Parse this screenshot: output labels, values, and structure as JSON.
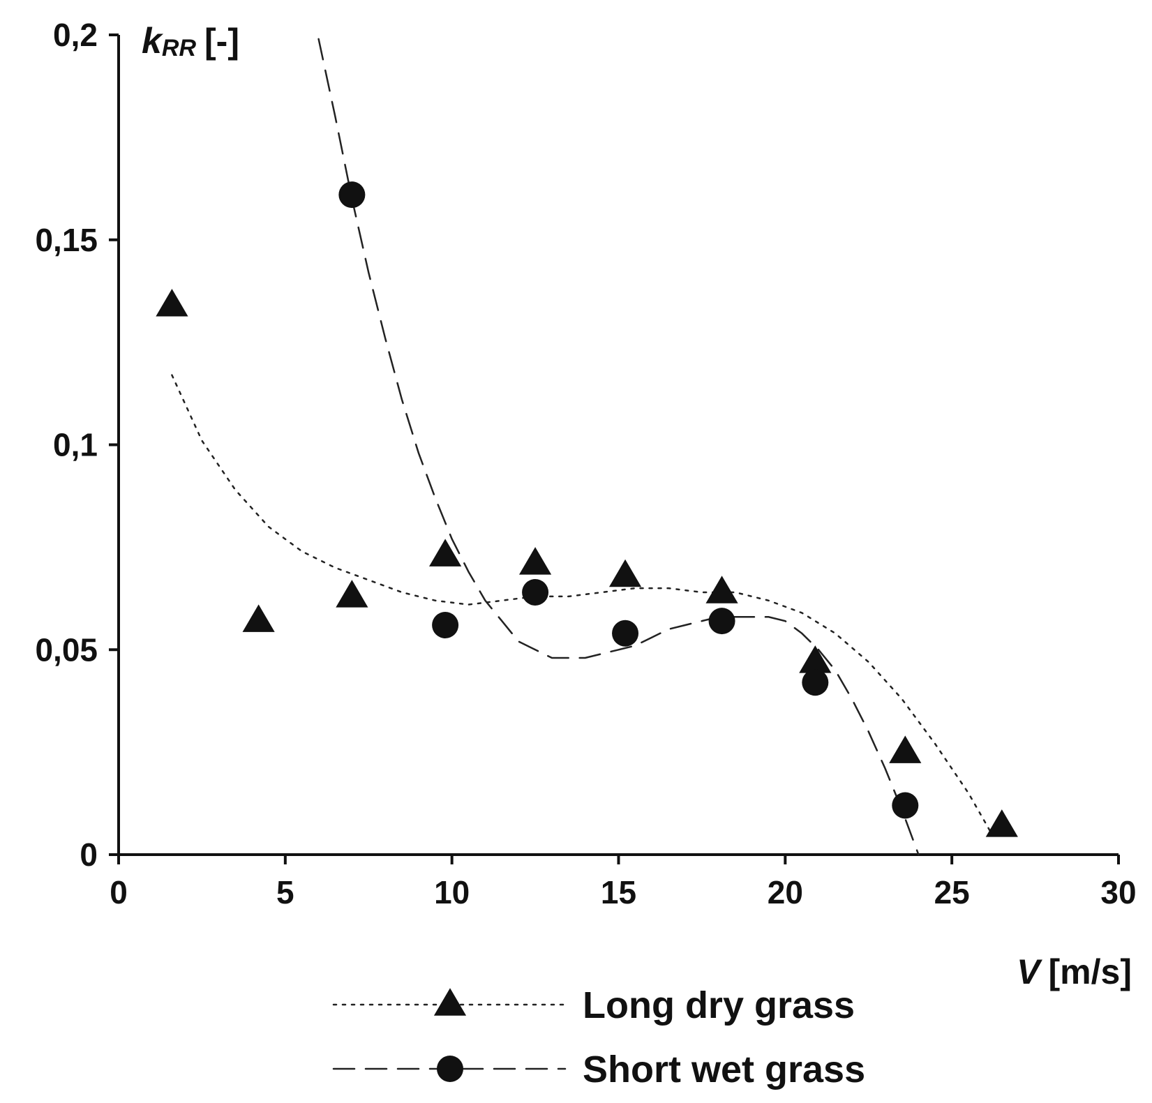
{
  "chart_data": {
    "type": "scatter",
    "title": "",
    "xlabel": {
      "symbol": "V",
      "unit": "[m/s]"
    },
    "ylabel": {
      "symbol": "k",
      "subscript": "RR",
      "unit": "[-]"
    },
    "xlim": [
      0,
      30
    ],
    "ylim": [
      0,
      0.2
    ],
    "x_ticks": [
      0,
      5,
      10,
      15,
      20,
      25,
      30
    ],
    "x_tick_labels": [
      "0",
      "5",
      "10",
      "15",
      "20",
      "25",
      "30"
    ],
    "y_ticks": [
      0,
      0.05,
      0.1,
      0.15,
      0.2
    ],
    "y_tick_labels": [
      "0",
      "0,05",
      "0,1",
      "0,15",
      "0,2"
    ],
    "grid": false,
    "legend_position": "bottom",
    "series": [
      {
        "name": "Long dry grass",
        "marker": "triangle",
        "line_style": "dotted",
        "x": [
          1.6,
          4.2,
          7.0,
          9.8,
          12.5,
          15.2,
          18.1,
          20.9,
          23.6,
          26.5
        ],
        "y": [
          0.134,
          0.057,
          0.063,
          0.073,
          0.071,
          0.068,
          0.064,
          0.047,
          0.025,
          0.007
        ],
        "trend_x": [
          1.6,
          2.5,
          3.5,
          4.5,
          5.5,
          6.5,
          7.5,
          8.5,
          9.5,
          10.5,
          11.5,
          12.5,
          13.5,
          14.5,
          15.5,
          16.5,
          17.5,
          18.5,
          19.5,
          20.5,
          21.5,
          22.5,
          23.5,
          24.5,
          25.5,
          26.2
        ],
        "trend_y": [
          0.117,
          0.101,
          0.089,
          0.08,
          0.074,
          0.07,
          0.067,
          0.064,
          0.062,
          0.061,
          0.062,
          0.063,
          0.063,
          0.064,
          0.065,
          0.065,
          0.064,
          0.064,
          0.062,
          0.059,
          0.054,
          0.047,
          0.038,
          0.027,
          0.015,
          0.005
        ]
      },
      {
        "name": "Short wet grass",
        "marker": "circle",
        "line_style": "dashed",
        "x": [
          7.0,
          9.8,
          12.5,
          15.2,
          18.1,
          20.9,
          23.6
        ],
        "y": [
          0.161,
          0.056,
          0.064,
          0.054,
          0.057,
          0.042,
          0.012
        ],
        "trend_x": [
          6.0,
          6.5,
          7.0,
          7.5,
          8.0,
          8.5,
          9.0,
          9.5,
          10.0,
          10.5,
          11.0,
          11.5,
          12.0,
          12.5,
          13.0,
          13.5,
          14.0,
          14.5,
          15.0,
          15.5,
          16.0,
          16.5,
          17.0,
          17.5,
          18.0,
          18.5,
          19.0,
          19.5,
          20.0,
          20.5,
          21.0,
          21.5,
          22.0,
          22.5,
          23.0,
          23.5,
          24.0
        ],
        "trend_y": [
          0.199,
          0.18,
          0.16,
          0.142,
          0.126,
          0.111,
          0.098,
          0.087,
          0.077,
          0.069,
          0.062,
          0.057,
          0.052,
          0.05,
          0.048,
          0.048,
          0.048,
          0.049,
          0.05,
          0.051,
          0.053,
          0.055,
          0.056,
          0.057,
          0.058,
          0.058,
          0.058,
          0.058,
          0.057,
          0.054,
          0.05,
          0.045,
          0.038,
          0.03,
          0.021,
          0.011,
          0.0
        ]
      }
    ]
  }
}
